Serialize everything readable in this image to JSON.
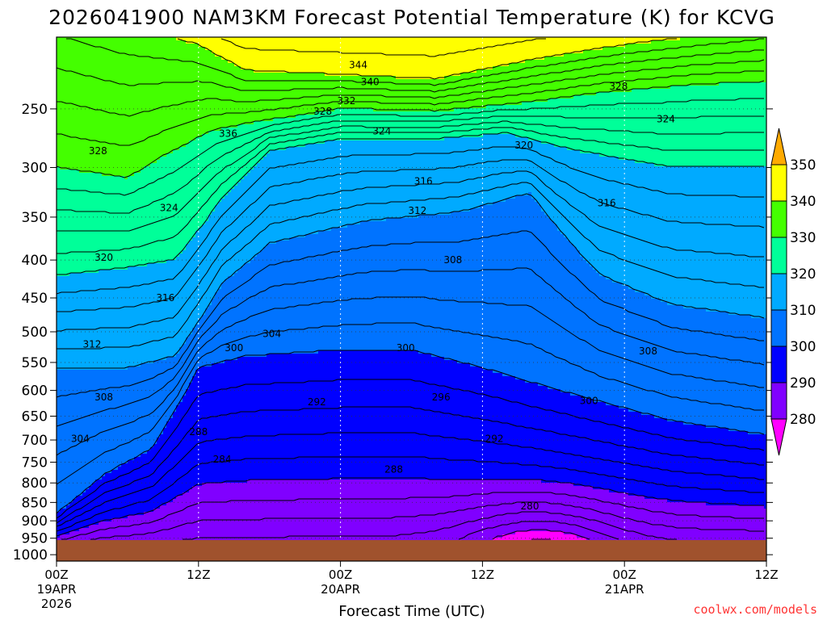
{
  "chart_data": {
    "type": "heatmap",
    "title": "2026041900 NAM3KM Forecast Potential Temperature (K) for KCVG",
    "xlabel": "Forecast Time (UTC)",
    "ylabel": "",
    "credit": "coolwx.com/models",
    "units": "K",
    "x_ticks": [
      {
        "hour": 0,
        "label": "00Z",
        "date": "19APR",
        "year": "2026"
      },
      {
        "hour": 12,
        "label": "12Z",
        "date": "",
        "year": ""
      },
      {
        "hour": 24,
        "label": "00Z",
        "date": "20APR",
        "year": ""
      },
      {
        "hour": 36,
        "label": "12Z",
        "date": "",
        "year": ""
      },
      {
        "hour": 48,
        "label": "00Z",
        "date": "21APR",
        "year": ""
      },
      {
        "hour": 60,
        "label": "12Z",
        "date": "",
        "year": ""
      }
    ],
    "xlim": [
      0,
      60
    ],
    "y_ticks": [
      "250",
      "300",
      "350",
      "400",
      "450",
      "500",
      "550",
      "600",
      "650",
      "700",
      "750",
      "800",
      "850",
      "900",
      "950",
      "1000"
    ],
    "y_values": [
      250,
      300,
      350,
      400,
      450,
      500,
      550,
      600,
      650,
      700,
      750,
      800,
      850,
      900,
      950,
      1000
    ],
    "ylim": [
      200,
      1020
    ],
    "y_axis_inverted": true,
    "colorbar": {
      "ticks": [
        "280",
        "290",
        "300",
        "310",
        "320",
        "330",
        "340",
        "350"
      ],
      "bands": [
        {
          "from": 270,
          "to": 280,
          "color": "#ff00ff"
        },
        {
          "from": 280,
          "to": 290,
          "color": "#8000ff"
        },
        {
          "from": 290,
          "to": 300,
          "color": "#0000ff"
        },
        {
          "from": 300,
          "to": 310,
          "color": "#0073ff"
        },
        {
          "from": 310,
          "to": 320,
          "color": "#00aaff"
        },
        {
          "from": 320,
          "to": 330,
          "color": "#00ff99"
        },
        {
          "from": 330,
          "to": 340,
          "color": "#44ff00"
        },
        {
          "from": 340,
          "to": 350,
          "color": "#ffff00"
        },
        {
          "from": 350,
          "to": 360,
          "color": "#ffaa00"
        }
      ]
    },
    "ground_color": "#a0522d",
    "contour_interval": 2,
    "contour_labels": [
      {
        "text": "344",
        "hour": 25.5,
        "p": 218
      },
      {
        "text": "340",
        "hour": 26.5,
        "p": 230
      },
      {
        "text": "332",
        "hour": 24.5,
        "p": 244
      },
      {
        "text": "328",
        "hour": 22.5,
        "p": 252
      },
      {
        "text": "324",
        "hour": 27.5,
        "p": 268
      },
      {
        "text": "336",
        "hour": 14.5,
        "p": 270
      },
      {
        "text": "328",
        "hour": 3.5,
        "p": 285
      },
      {
        "text": "328",
        "hour": 47.5,
        "p": 233
      },
      {
        "text": "324",
        "hour": 51.5,
        "p": 258
      },
      {
        "text": "320",
        "hour": 39.5,
        "p": 280
      },
      {
        "text": "316",
        "hour": 31,
        "p": 313
      },
      {
        "text": "316",
        "hour": 46.5,
        "p": 335
      },
      {
        "text": "324",
        "hour": 9.5,
        "p": 340
      },
      {
        "text": "312",
        "hour": 30.5,
        "p": 343
      },
      {
        "text": "320",
        "hour": 4,
        "p": 397
      },
      {
        "text": "308",
        "hour": 33.5,
        "p": 400
      },
      {
        "text": "316",
        "hour": 9.2,
        "p": 450
      },
      {
        "text": "304",
        "hour": 18.2,
        "p": 503
      },
      {
        "text": "312",
        "hour": 3,
        "p": 520
      },
      {
        "text": "300",
        "hour": 15,
        "p": 526
      },
      {
        "text": "300",
        "hour": 29.5,
        "p": 526
      },
      {
        "text": "308",
        "hour": 50,
        "p": 531
      },
      {
        "text": "308",
        "hour": 4,
        "p": 613
      },
      {
        "text": "296",
        "hour": 32.5,
        "p": 613
      },
      {
        "text": "292",
        "hour": 22,
        "p": 622
      },
      {
        "text": "300",
        "hour": 45,
        "p": 620
      },
      {
        "text": "304",
        "hour": 2,
        "p": 697
      },
      {
        "text": "288",
        "hour": 12,
        "p": 683
      },
      {
        "text": "292",
        "hour": 37,
        "p": 697
      },
      {
        "text": "284",
        "hour": 14,
        "p": 743
      },
      {
        "text": "288",
        "hour": 28.5,
        "p": 767
      },
      {
        "text": "280",
        "hour": 40,
        "p": 860
      }
    ]
  }
}
